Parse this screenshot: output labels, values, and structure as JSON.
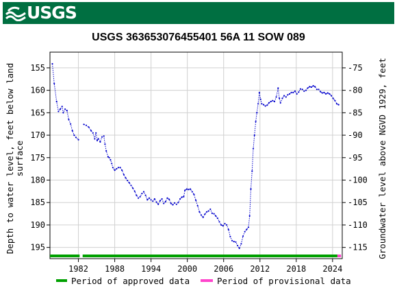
{
  "banner": {
    "logo_text": "USGS",
    "background_color": "#006f41"
  },
  "chart_data": {
    "type": "line",
    "title": "USGS 363653076455401 56A 11 SOW 089",
    "ylabel_left": [
      "Depth to water level, feet below land",
      "surface"
    ],
    "ylabel_right": "Groundwater level above NGVD 1929, feet",
    "ylim_left": [
      197.5,
      151.5
    ],
    "yticks_left": [
      155,
      160,
      165,
      170,
      175,
      180,
      185,
      190,
      195
    ],
    "yticks_right": [
      -75,
      -80,
      -85,
      -90,
      -95,
      -100,
      -105,
      -110,
      -115
    ],
    "right_axis_offset": -80,
    "xlim": [
      1977.3,
      2025.6
    ],
    "xticks": [
      1982,
      1988,
      1994,
      2000,
      2006,
      2012,
      2018,
      2024
    ],
    "grid": true,
    "series": [
      {
        "name": "",
        "color": "#0000cc",
        "style": "dotted-with-markers",
        "segments": [
          [
            [
              1977.7,
              154.1
            ],
            [
              1978.0,
              158.5
            ],
            [
              1978.4,
              162.5
            ],
            [
              1978.7,
              164.7
            ],
            [
              1979.0,
              164.2
            ],
            [
              1979.3,
              163.6
            ],
            [
              1979.5,
              165.0
            ],
            [
              1979.8,
              164.2
            ],
            [
              1980.1,
              164.5
            ],
            [
              1980.4,
              166.5
            ],
            [
              1980.7,
              167.5
            ],
            [
              1981.0,
              169.0
            ],
            [
              1981.3,
              170.0
            ],
            [
              1981.6,
              170.5
            ],
            [
              1982.0,
              171.0
            ]
          ],
          [
            [
              1982.9,
              167.6
            ],
            [
              1983.3,
              167.8
            ],
            [
              1983.7,
              168.2
            ],
            [
              1984.1,
              169.0
            ],
            [
              1984.4,
              169.5
            ],
            [
              1984.7,
              170.8
            ],
            [
              1984.9,
              169.5
            ],
            [
              1985.1,
              171.2
            ],
            [
              1985.3,
              170.8
            ],
            [
              1985.6,
              171.5
            ],
            [
              1985.9,
              170.4
            ],
            [
              1986.2,
              170.2
            ],
            [
              1986.4,
              172.0
            ],
            [
              1986.6,
              173.5
            ],
            [
              1986.9,
              174.8
            ],
            [
              1987.1,
              175.0
            ],
            [
              1987.3,
              175.5
            ],
            [
              1987.5,
              176.3
            ],
            [
              1987.7,
              177.2
            ],
            [
              1988.0,
              177.8
            ],
            [
              1988.3,
              177.5
            ],
            [
              1988.6,
              177.2
            ],
            [
              1988.9,
              177.2
            ],
            [
              1989.2,
              177.8
            ],
            [
              1989.5,
              178.8
            ],
            [
              1989.8,
              179.5
            ],
            [
              1990.1,
              180.1
            ],
            [
              1990.4,
              180.6
            ],
            [
              1990.7,
              181.2
            ],
            [
              1991.0,
              181.8
            ],
            [
              1991.3,
              182.5
            ],
            [
              1991.6,
              183.4
            ],
            [
              1991.9,
              184.0
            ],
            [
              1992.2,
              183.7
            ],
            [
              1992.5,
              183.0
            ],
            [
              1992.8,
              182.6
            ],
            [
              1993.1,
              183.4
            ],
            [
              1993.4,
              184.4
            ],
            [
              1993.7,
              184.0
            ],
            [
              1994.0,
              184.4
            ],
            [
              1994.3,
              184.7
            ],
            [
              1994.6,
              184.2
            ],
            [
              1994.9,
              184.9
            ],
            [
              1995.2,
              185.4
            ],
            [
              1995.5,
              184.6
            ],
            [
              1995.8,
              184.2
            ],
            [
              1996.1,
              185.2
            ],
            [
              1996.4,
              184.8
            ],
            [
              1996.7,
              184.0
            ],
            [
              1997.0,
              184.3
            ],
            [
              1997.3,
              185.2
            ],
            [
              1997.6,
              185.5
            ],
            [
              1997.9,
              185.1
            ],
            [
              1998.2,
              185.4
            ],
            [
              1998.5,
              185.0
            ],
            [
              1998.8,
              184.2
            ],
            [
              1999.1,
              183.8
            ],
            [
              1999.4,
              183.7
            ],
            [
              1999.6,
              182.3
            ],
            [
              1999.9,
              182.0
            ],
            [
              2000.2,
              182.1
            ],
            [
              2000.5,
              182.0
            ],
            [
              2000.8,
              182.6
            ],
            [
              2001.1,
              183.2
            ],
            [
              2001.4,
              184.5
            ],
            [
              2001.7,
              185.7
            ],
            [
              2002.0,
              187.1
            ],
            [
              2002.3,
              187.8
            ],
            [
              2002.6,
              188.3
            ],
            [
              2002.9,
              187.6
            ],
            [
              2003.2,
              187.1
            ],
            [
              2003.5,
              186.9
            ],
            [
              2003.8,
              186.5
            ],
            [
              2004.1,
              187.4
            ],
            [
              2004.4,
              187.5
            ],
            [
              2004.7,
              188.0
            ],
            [
              2005.0,
              188.5
            ],
            [
              2005.3,
              189.3
            ],
            [
              2005.6,
              190.0
            ],
            [
              2005.9,
              190.2
            ],
            [
              2006.2,
              189.7
            ],
            [
              2006.5,
              190.0
            ],
            [
              2006.8,
              191.0
            ],
            [
              2007.1,
              192.6
            ],
            [
              2007.4,
              193.5
            ],
            [
              2007.7,
              193.7
            ],
            [
              2008.0,
              193.8
            ],
            [
              2008.3,
              194.6
            ],
            [
              2008.6,
              195.2
            ],
            [
              2008.9,
              194.2
            ],
            [
              2009.2,
              192.5
            ],
            [
              2009.5,
              191.5
            ],
            [
              2009.8,
              191.0
            ],
            [
              2010.1,
              190.5
            ],
            [
              2010.3,
              188.0
            ],
            [
              2010.5,
              182.0
            ],
            [
              2010.7,
              178.0
            ],
            [
              2010.9,
              173.0
            ],
            [
              2011.1,
              170.0
            ],
            [
              2011.3,
              167.0
            ],
            [
              2011.5,
              165.0
            ],
            [
              2011.7,
              163.0
            ],
            [
              2011.9,
              160.5
            ],
            [
              2012.1,
              162.0
            ],
            [
              2012.3,
              163.0
            ],
            [
              2012.6,
              163.2
            ],
            [
              2012.9,
              163.5
            ],
            [
              2013.2,
              163.3
            ],
            [
              2013.5,
              162.8
            ],
            [
              2013.8,
              162.5
            ],
            [
              2014.1,
              162.3
            ],
            [
              2014.4,
              162.5
            ],
            [
              2014.7,
              161.5
            ],
            [
              2015.0,
              159.5
            ],
            [
              2015.2,
              161.8
            ],
            [
              2015.4,
              162.8
            ],
            [
              2015.7,
              161.8
            ],
            [
              2016.0,
              161.2
            ],
            [
              2016.3,
              161.5
            ],
            [
              2016.6,
              161.0
            ],
            [
              2016.9,
              160.8
            ],
            [
              2017.2,
              160.5
            ],
            [
              2017.5,
              160.5
            ],
            [
              2017.8,
              160.2
            ],
            [
              2018.1,
              160.8
            ],
            [
              2018.4,
              160.4
            ],
            [
              2018.7,
              159.7
            ],
            [
              2019.0,
              159.8
            ],
            [
              2019.3,
              160.2
            ],
            [
              2019.6,
              160.0
            ],
            [
              2019.9,
              159.5
            ],
            [
              2020.2,
              159.2
            ],
            [
              2020.5,
              159.3
            ],
            [
              2020.8,
              159.0
            ],
            [
              2021.1,
              159.2
            ],
            [
              2021.4,
              159.8
            ],
            [
              2021.7,
              159.8
            ],
            [
              2022.0,
              160.3
            ],
            [
              2022.3,
              160.6
            ],
            [
              2022.6,
              160.5
            ],
            [
              2022.9,
              160.8
            ],
            [
              2023.2,
              160.6
            ],
            [
              2023.5,
              160.8
            ],
            [
              2023.8,
              161.2
            ],
            [
              2024.1,
              161.8
            ],
            [
              2024.4,
              162.3
            ],
            [
              2024.7,
              163.0
            ],
            [
              2025.0,
              163.2
            ]
          ]
        ]
      }
    ],
    "approved_periods": [
      [
        1977.3,
        1982.2
      ],
      [
        1982.7,
        2024.8
      ]
    ],
    "provisional_periods": [
      [
        2024.8,
        2025.4
      ]
    ],
    "legend": [
      {
        "label": "Period of approved data",
        "color": "#00a000"
      },
      {
        "label": "Period of provisional data",
        "color": "#ff44cc"
      }
    ]
  }
}
